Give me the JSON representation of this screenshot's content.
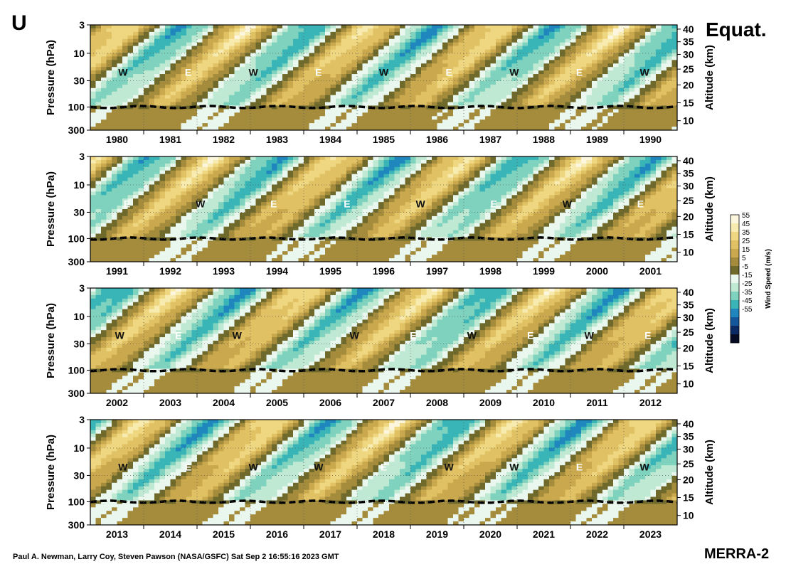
{
  "figure": {
    "letter": "U",
    "region": "Equat.",
    "dataset": "MERRA-2",
    "credit": "Paul A. Newman, Larry Coy, Steven Pawson (NASA/GSFC) Sat Sep  2 16:55:16 2023 GMT"
  },
  "colorbar": {
    "title": "Wind Speed (m/s)",
    "levels": [
      "55",
      "45",
      "35",
      "25",
      "15",
      "5",
      "-5",
      "-15",
      "-25",
      "-35",
      "-45",
      "-55"
    ],
    "colors": [
      "#fcf6de",
      "#f7ebb0",
      "#efd781",
      "#e0c163",
      "#c9a84e",
      "#a48c3c",
      "#6f6a2c",
      "#e9f7ee",
      "#bfe9d2",
      "#7fd2bd",
      "#39b5b7",
      "#1f87bd",
      "#14579c",
      "#0b2a63",
      "#050b23"
    ]
  },
  "chart_data": {
    "type": "heatmap",
    "variable": "zonal-mean zonal wind U",
    "units": "m/s",
    "ylabel_left": "Pressure (hPa)",
    "ylabel_right": "Altitude (km)",
    "pressure_ticks": [
      "3",
      "10",
      "30",
      "100",
      "300"
    ],
    "altitude_ticks": [
      "40",
      "35",
      "30",
      "25",
      "20",
      "15",
      "10"
    ],
    "color_range": [
      -55,
      55
    ],
    "panels": [
      {
        "years": [
          "1980",
          "1981",
          "1982",
          "1983",
          "1984",
          "1985",
          "1986",
          "1987",
          "1988",
          "1989",
          "1990"
        ],
        "labels": [
          "W",
          "E",
          "W",
          "E",
          "W",
          "E",
          "W",
          "E",
          "W"
        ]
      },
      {
        "years": [
          "1991",
          "1992",
          "1993",
          "1994",
          "1995",
          "1996",
          "1997",
          "1998",
          "1999",
          "2000",
          "2001"
        ],
        "labels": [
          "E",
          "W",
          "E",
          "E",
          "W",
          "E",
          "W",
          "E"
        ]
      },
      {
        "years": [
          "2002",
          "2003",
          "2004",
          "2005",
          "2006",
          "2007",
          "2008",
          "2009",
          "2010",
          "2011",
          "2012"
        ],
        "labels": [
          "W",
          "E",
          "W",
          "E",
          "W",
          "E",
          "W",
          "E",
          "W",
          "E"
        ]
      },
      {
        "years": [
          "2013",
          "2014",
          "2015",
          "2016",
          "2017",
          "2018",
          "2019",
          "2020",
          "2021",
          "2022",
          "2023"
        ],
        "labels": [
          "W",
          "E",
          "W",
          "W",
          "E",
          "W",
          "W",
          "E",
          "W"
        ]
      }
    ]
  }
}
